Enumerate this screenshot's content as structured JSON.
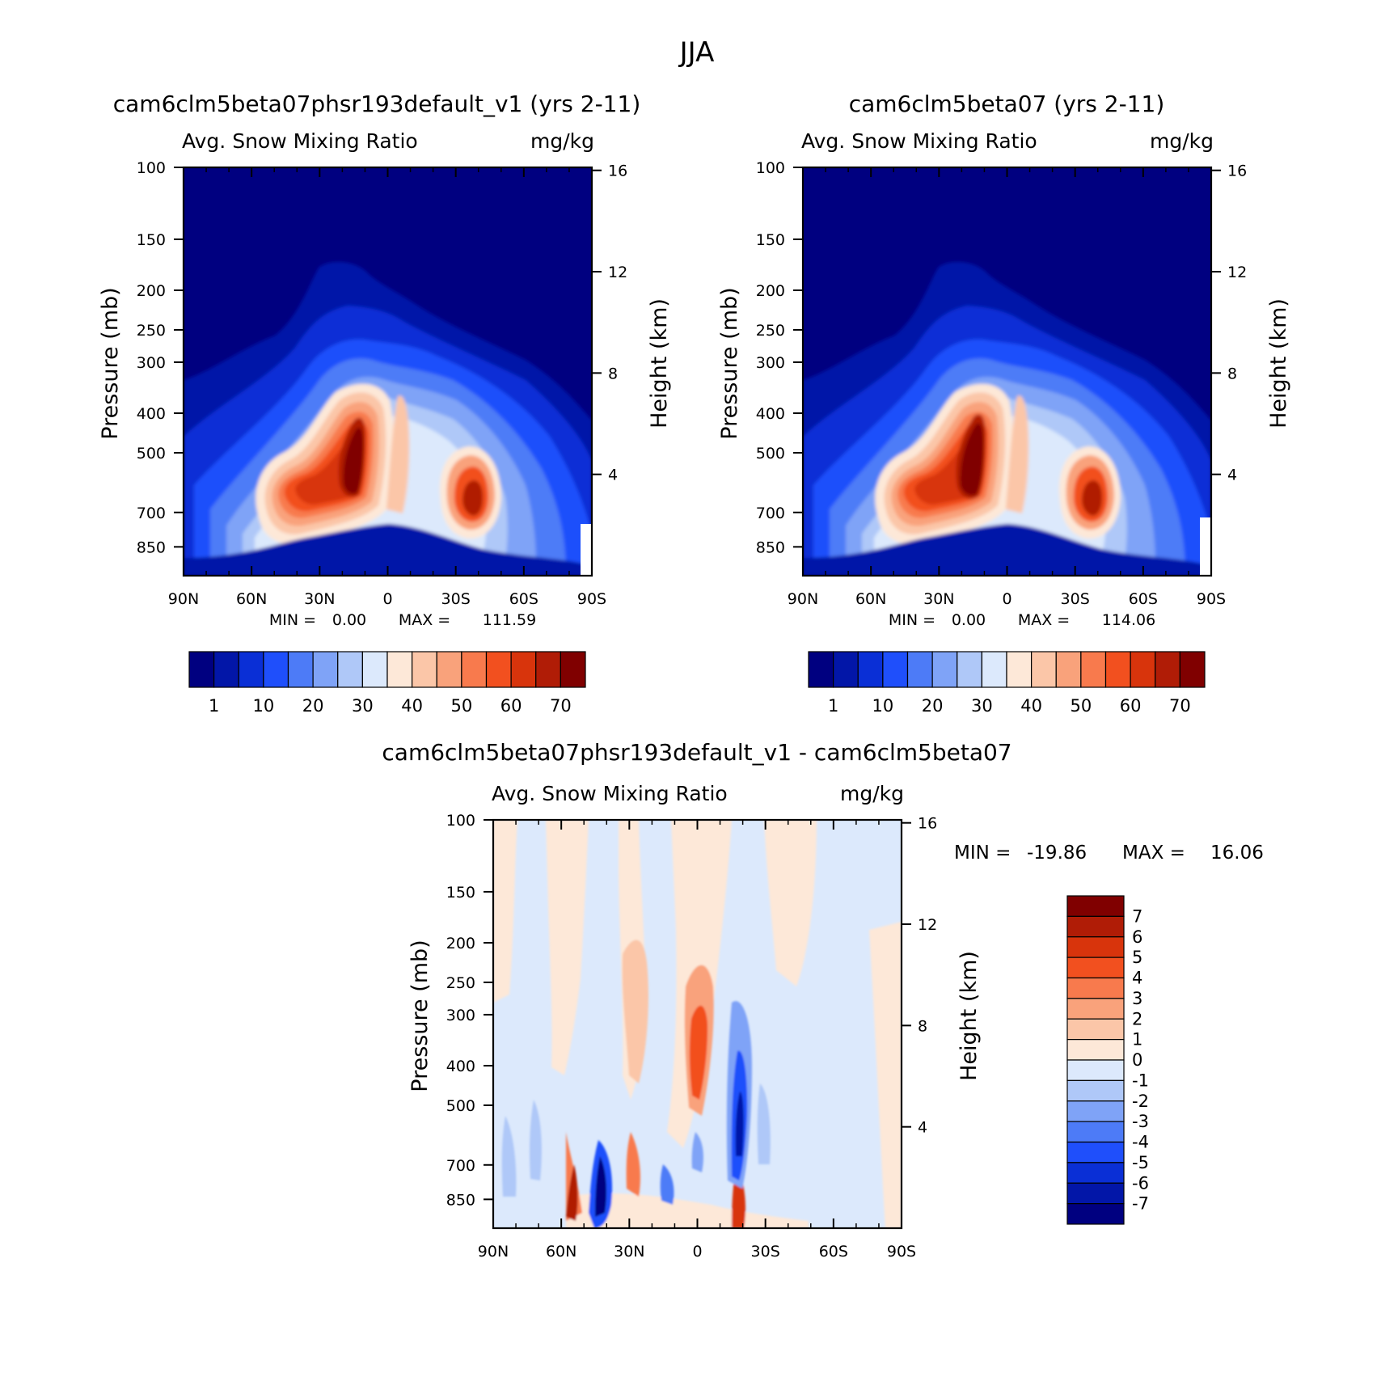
{
  "figure": {
    "title": "JJA"
  },
  "chart_data": [
    {
      "type": "heatmap",
      "id": "panel_a",
      "title": "cam6clm5beta07phsr193default_v1 (yrs 2-11)",
      "variable_label": "Avg. Snow Mixing Ratio",
      "units": "mg/kg",
      "ylabel": "Pressure (mb)",
      "ylabel_right": "Height (km)",
      "x_ticks": [
        "90N",
        "60N",
        "30N",
        "0",
        "30S",
        "60S",
        "90S"
      ],
      "y_ticks": [
        "100",
        "150",
        "200",
        "250",
        "300",
        "400",
        "500",
        "700",
        "850"
      ],
      "y_ticks_right": [
        "16",
        "12",
        "8",
        "4"
      ],
      "min_label": "MIN =",
      "min_value": "0.00",
      "max_label": "MAX =",
      "max_value": "111.59",
      "colorbar_labels": [
        "1",
        "10",
        "20",
        "30",
        "40",
        "50",
        "60",
        "70"
      ],
      "colors": [
        "#000080",
        "#0216a8",
        "#0a2fd6",
        "#1f4ffb",
        "#4d7bf7",
        "#7fa3f7",
        "#afc8f8",
        "#dce9fc",
        "#fde8d8",
        "#fbc6a8",
        "#f9a27b",
        "#f87a4d",
        "#f2501f",
        "#d8340c",
        "#b01c06",
        "#800000"
      ]
    },
    {
      "type": "heatmap",
      "id": "panel_b",
      "title": "cam6clm5beta07 (yrs 2-11)",
      "variable_label": "Avg. Snow Mixing Ratio",
      "units": "mg/kg",
      "ylabel": "Pressure (mb)",
      "ylabel_right": "Height (km)",
      "x_ticks": [
        "90N",
        "60N",
        "30N",
        "0",
        "30S",
        "60S",
        "90S"
      ],
      "y_ticks": [
        "100",
        "150",
        "200",
        "250",
        "300",
        "400",
        "500",
        "700",
        "850"
      ],
      "y_ticks_right": [
        "16",
        "12",
        "8",
        "4"
      ],
      "min_label": "MIN =",
      "min_value": "0.00",
      "max_label": "MAX =",
      "max_value": "114.06",
      "colorbar_labels": [
        "1",
        "10",
        "20",
        "30",
        "40",
        "50",
        "60",
        "70"
      ],
      "colors": [
        "#000080",
        "#0216a8",
        "#0a2fd6",
        "#1f4ffb",
        "#4d7bf7",
        "#7fa3f7",
        "#afc8f8",
        "#dce9fc",
        "#fde8d8",
        "#fbc6a8",
        "#f9a27b",
        "#f87a4d",
        "#f2501f",
        "#d8340c",
        "#b01c06",
        "#800000"
      ]
    },
    {
      "type": "heatmap",
      "id": "panel_diff",
      "title": "cam6clm5beta07phsr193default_v1 - cam6clm5beta07",
      "variable_label": "Avg. Snow Mixing Ratio",
      "units": "mg/kg",
      "ylabel": "Pressure (mb)",
      "ylabel_right": "Height (km)",
      "x_ticks": [
        "90N",
        "60N",
        "30N",
        "0",
        "30S",
        "60S",
        "90S"
      ],
      "y_ticks": [
        "100",
        "150",
        "200",
        "250",
        "300",
        "400",
        "500",
        "700",
        "850"
      ],
      "y_ticks_right": [
        "16",
        "12",
        "8",
        "4"
      ],
      "min_label": "MIN =",
      "min_value": "-19.86",
      "max_label": "MAX =",
      "max_value": "16.06",
      "colorbar_labels": [
        "7",
        "6",
        "5",
        "4",
        "3",
        "2",
        "1",
        "0",
        "-1",
        "-2",
        "-3",
        "-4",
        "-5",
        "-6",
        "-7"
      ],
      "colors": [
        "#800000",
        "#b01c06",
        "#d8340c",
        "#f2501f",
        "#f87a4d",
        "#f9a27b",
        "#fbc6a8",
        "#fde8d8",
        "#dce9fc",
        "#afc8f8",
        "#7fa3f7",
        "#4d7bf7",
        "#1f4ffb",
        "#0a2fd6",
        "#0216a8",
        "#000080"
      ]
    }
  ]
}
